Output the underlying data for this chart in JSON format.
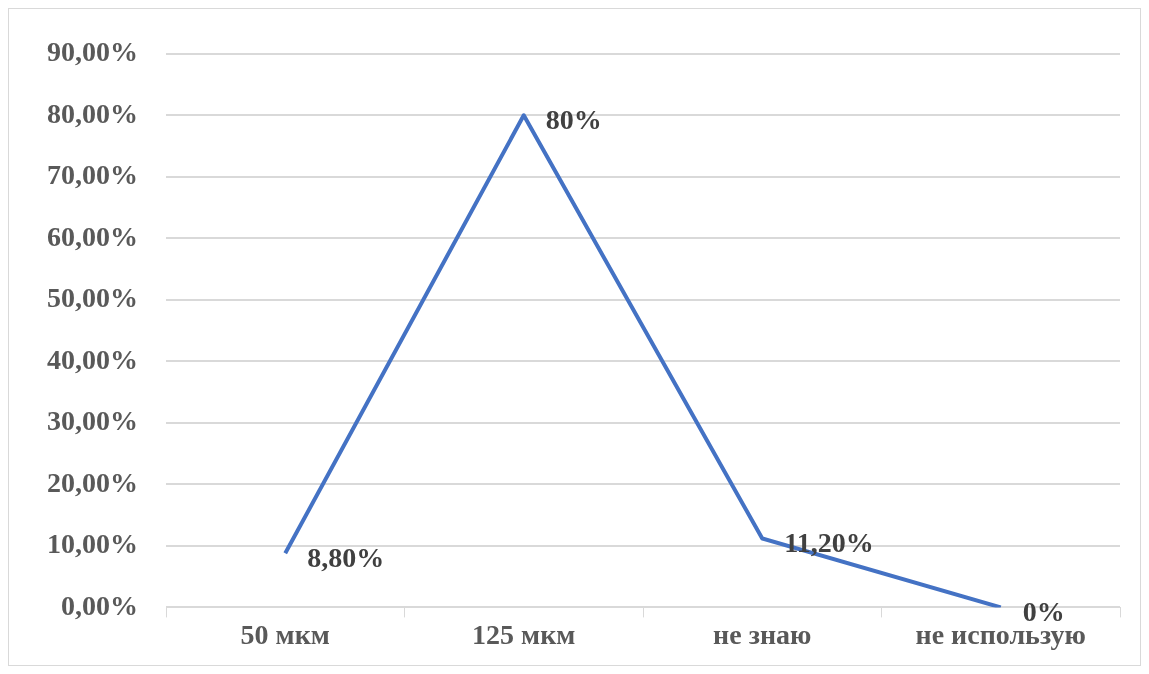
{
  "chart_data": {
    "type": "line",
    "categories": [
      "50 мкм",
      "125 мкм",
      "не знаю",
      "не использую"
    ],
    "series": [
      {
        "color": "#4472c4",
        "values": [
          8.8,
          80,
          11.2,
          0
        ]
      }
    ],
    "value_labels": [
      "8,80%",
      "80%",
      "11,20%",
      "0%"
    ],
    "ylim": [
      0,
      90
    ],
    "yticks": [
      {
        "value": 0,
        "label": "0,00%"
      },
      {
        "value": 10,
        "label": "10,00%"
      },
      {
        "value": 20,
        "label": "20,00%"
      },
      {
        "value": 30,
        "label": "30,00%"
      },
      {
        "value": 40,
        "label": "40,00%"
      },
      {
        "value": 50,
        "label": "50,00%"
      },
      {
        "value": 60,
        "label": "60,00%"
      },
      {
        "value": 70,
        "label": "70,00%"
      },
      {
        "value": 80,
        "label": "80,00%"
      },
      {
        "value": 90,
        "label": "90,00%"
      }
    ],
    "grid": "y",
    "legend": false,
    "marker": "none",
    "line_style": "solid"
  }
}
